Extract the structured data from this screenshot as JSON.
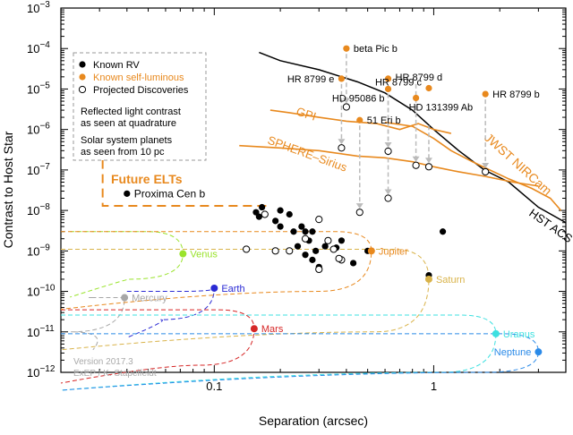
{
  "chart_data": {
    "type": "scatter",
    "xlabel": "Separation (arcsec)",
    "ylabel": "Contrast to Host Star",
    "xscale": "log",
    "yscale": "log",
    "xlim": [
      0.02,
      4
    ],
    "ylim": [
      1e-12,
      0.001
    ],
    "x_ticks": [
      {
        "value": 0.1,
        "label": "0.1"
      },
      {
        "value": 1,
        "label": "1"
      }
    ],
    "y_ticks": [
      {
        "value": 1e-12,
        "mant": "10",
        "exp": "−12"
      },
      {
        "value": 1e-11,
        "mant": "10",
        "exp": "−11"
      },
      {
        "value": 1e-10,
        "mant": "10",
        "exp": "−10"
      },
      {
        "value": 1e-09,
        "mant": "10",
        "exp": "−9"
      },
      {
        "value": 1e-08,
        "mant": "10",
        "exp": "−8"
      },
      {
        "value": 1e-07,
        "mant": "10",
        "exp": "−7"
      },
      {
        "value": 1e-06,
        "mant": "10",
        "exp": "−6"
      },
      {
        "value": 1e-05,
        "mant": "10",
        "exp": "−5"
      },
      {
        "value": 0.0001,
        "mant": "10",
        "exp": "−4"
      },
      {
        "value": 0.001,
        "mant": "10",
        "exp": "−3"
      }
    ],
    "legend": {
      "position": "top-left",
      "items": [
        {
          "label": "Known RV",
          "marker": "filled",
          "color": "#000000"
        },
        {
          "label": "Known self-luminous",
          "marker": "filled",
          "color": "#e8891e"
        },
        {
          "label": "Projected Discoveries",
          "marker": "open",
          "color": "#000000"
        }
      ],
      "notes": [
        [
          "Reflected light contrast",
          "as seen at quadrature"
        ],
        [
          "Solar system planets",
          "as seen from 10 pc"
        ]
      ]
    },
    "future_elts": {
      "label": "Future ELTs",
      "color": "#e8891e",
      "corner_sep": 0.175,
      "corner_contrast": 1.3e-08,
      "left_sep": 0.031,
      "top_contrast": 4e-07
    },
    "self_luminous": [
      {
        "name": "beta Pic  b",
        "sep": 0.4,
        "contrast": 0.0001
      },
      {
        "name": "HR 8799 e",
        "sep": 0.38,
        "contrast": 1.8e-05
      },
      {
        "name": "HR 8799 d",
        "sep": 0.62,
        "contrast": 1.8e-05
      },
      {
        "name": "HR 8799 c",
        "sep": 0.95,
        "contrast": 1.05e-05
      },
      {
        "name": "HD 95086 b",
        "sep": 0.62,
        "contrast": 1e-05
      },
      {
        "name": "HD 131399 Ab",
        "sep": 0.83,
        "contrast": 6e-06
      },
      {
        "name": "51 Eri  b",
        "sep": 0.46,
        "contrast": 1.7e-06
      },
      {
        "name": "HR 8799 b",
        "sep": 1.72,
        "contrast": 7.5e-06
      }
    ],
    "projected_self_luminous": [
      {
        "sep": 0.38,
        "contrast": 3.5e-07
      },
      {
        "sep": 0.4,
        "contrast": 3.6e-06
      },
      {
        "sep": 0.62,
        "contrast": 2.9e-07
      },
      {
        "sep": 0.83,
        "contrast": 1.3e-07
      },
      {
        "sep": 0.95,
        "contrast": 1.2e-07
      },
      {
        "sep": 1.72,
        "contrast": 9e-08
      },
      {
        "sep": 0.46,
        "contrast": 9e-09
      },
      {
        "sep": 0.62,
        "contrast": 2e-08
      }
    ],
    "known_rv": [
      {
        "sep": 1.1,
        "contrast": 3e-09
      },
      {
        "sep": 0.95,
        "contrast": 2.5e-10
      },
      {
        "sep": 0.155,
        "contrast": 9e-09
      },
      {
        "sep": 0.165,
        "contrast": 1.2e-08
      },
      {
        "sep": 0.16,
        "contrast": 7e-09
      },
      {
        "sep": 0.19,
        "contrast": 5.5e-09
      },
      {
        "sep": 0.2,
        "contrast": 4e-09
      },
      {
        "sep": 0.22,
        "contrast": 8e-09
      },
      {
        "sep": 0.23,
        "contrast": 3e-09
      },
      {
        "sep": 0.25,
        "contrast": 4e-09
      },
      {
        "sep": 0.26,
        "contrast": 3e-09
      },
      {
        "sep": 0.28,
        "contrast": 3e-09
      },
      {
        "sep": 0.27,
        "contrast": 1.8e-09
      },
      {
        "sep": 0.24,
        "contrast": 1.3e-09
      },
      {
        "sep": 0.26,
        "contrast": 8e-10
      },
      {
        "sep": 0.29,
        "contrast": 1e-09
      },
      {
        "sep": 0.32,
        "contrast": 1.3e-09
      },
      {
        "sep": 0.36,
        "contrast": 1.2e-09
      },
      {
        "sep": 0.38,
        "contrast": 1.8e-09
      },
      {
        "sep": 0.5,
        "contrast": 1e-09
      },
      {
        "sep": 0.3,
        "contrast": 4e-10
      },
      {
        "sep": 0.43,
        "contrast": 5e-10
      },
      {
        "sep": 0.28,
        "contrast": 6e-10
      },
      {
        "sep": 0.2,
        "contrast": 1e-08
      }
    ],
    "projected_rv": [
      {
        "sep": 0.17,
        "contrast": 8e-09
      },
      {
        "sep": 0.14,
        "contrast": 1.1e-09
      },
      {
        "sep": 0.19,
        "contrast": 1e-09
      },
      {
        "sep": 0.26,
        "contrast": 2e-09
      },
      {
        "sep": 0.3,
        "contrast": 6e-09
      },
      {
        "sep": 0.33,
        "contrast": 1.8e-09
      },
      {
        "sep": 0.35,
        "contrast": 1.1e-09
      },
      {
        "sep": 0.38,
        "contrast": 6e-10
      },
      {
        "sep": 0.3,
        "contrast": 3.5e-10
      },
      {
        "sep": 0.22,
        "contrast": 1e-09
      },
      {
        "sep": 0.37,
        "contrast": 6.5e-10
      }
    ],
    "proxima": {
      "name": "Proxima Cen b",
      "sep": 0.04,
      "contrast": 2.6e-08
    },
    "solar_system": [
      {
        "name": "Venus",
        "sep": 0.072,
        "contrast": 8.5e-10,
        "color": "#9ae32c",
        "curve_top": 3e-09,
        "curve_bottom": 2e-10,
        "curve_left": 0.022
      },
      {
        "name": "Earth",
        "sep": 0.1,
        "contrast": 1.2e-10,
        "color": "#2a2ad4",
        "curve_top": 1e-10,
        "curve_bottom": 2e-11,
        "curve_left": 0.04
      },
      {
        "name": "Mercury",
        "sep": 0.039,
        "contrast": 7e-11,
        "color": "#a7a7a7",
        "curve_top": 7e-11,
        "curve_bottom": 1e-11,
        "curve_left": 0.028
      },
      {
        "name": "Mars",
        "sep": 0.152,
        "contrast": 1.2e-11,
        "color": "#d62626",
        "curve_top": 3.5e-11,
        "curve_bottom": 1.5e-12,
        "curve_left": 0.02
      },
      {
        "name": "Jupiter",
        "sep": 0.52,
        "contrast": 1e-09,
        "color": "#e8891e",
        "curve_top": 3e-09,
        "curve_bottom": 1e-10,
        "curve_left": 0.02
      },
      {
        "name": "Saturn",
        "sep": 0.95,
        "contrast": 2e-10,
        "color": "#d9b34a",
        "curve_top": 1.1e-09,
        "curve_bottom": 1e-11,
        "curve_left": 0.02
      },
      {
        "name": "Uranus",
        "sep": 1.92,
        "contrast": 9e-12,
        "color": "#3de0e0",
        "curve_top": 2.6e-11,
        "curve_bottom": 1e-12,
        "curve_left": 0.02
      },
      {
        "name": "Neptune",
        "sep": 3.0,
        "contrast": 3.2e-12,
        "color": "#2a8ae8",
        "curve_top": 9e-12,
        "curve_bottom": 1e-12,
        "curve_left": 0.02
      }
    ],
    "contrast_curves": [
      {
        "name": "HST ACS",
        "color": "#000000",
        "points": [
          [
            0.16,
            8e-05
          ],
          [
            0.2,
            5e-05
          ],
          [
            0.3,
            3e-05
          ],
          [
            0.45,
            1.5e-05
          ],
          [
            0.6,
            8e-06
          ],
          [
            0.8,
            3e-06
          ],
          [
            1.0,
            1e-06
          ],
          [
            1.3,
            3e-07
          ],
          [
            1.7,
            1e-07
          ],
          [
            2.2,
            5e-08
          ],
          [
            3.0,
            1.2e-08
          ],
          [
            4.0,
            5e-09
          ]
        ]
      },
      {
        "name": "GPI",
        "color": "#e8891e",
        "points": [
          [
            0.18,
            3e-06
          ],
          [
            0.22,
            2.6e-06
          ],
          [
            0.3,
            2e-06
          ],
          [
            0.4,
            1.6e-06
          ],
          [
            0.55,
            1.4e-06
          ],
          [
            0.7,
            1e-06
          ],
          [
            0.85,
            1.4e-06
          ],
          [
            1.0,
            1e-06
          ],
          [
            1.2,
            8e-07
          ]
        ]
      },
      {
        "name": "SPHERE–Sirius",
        "color": "#e8891e",
        "points": [
          [
            0.13,
            4e-07
          ],
          [
            0.2,
            3.5e-07
          ],
          [
            0.3,
            3e-07
          ],
          [
            0.45,
            2.2e-07
          ],
          [
            0.6,
            2e-07
          ],
          [
            0.8,
            1.6e-07
          ],
          [
            1.0,
            1.2e-07
          ],
          [
            1.3,
            9e-08
          ],
          [
            1.7,
            7e-08
          ],
          [
            2.3,
            5e-08
          ],
          [
            3.0,
            4e-08
          ]
        ]
      },
      {
        "name": "JWST NIRCam",
        "color": "#e8891e",
        "points": [
          [
            0.6,
            1.5e-06
          ],
          [
            0.8,
            1.2e-06
          ],
          [
            1.0,
            6e-07
          ],
          [
            1.2,
            3e-07
          ],
          [
            1.5,
            1.6e-07
          ],
          [
            1.8,
            1e-07
          ],
          [
            2.2,
            6e-08
          ],
          [
            2.8,
            3.5e-08
          ],
          [
            3.4,
            2e-08
          ],
          [
            3.8,
            1e-08
          ]
        ]
      }
    ],
    "credit": [
      "Version 2017.3",
      "ExEP / K. Stapelfeldt"
    ]
  }
}
